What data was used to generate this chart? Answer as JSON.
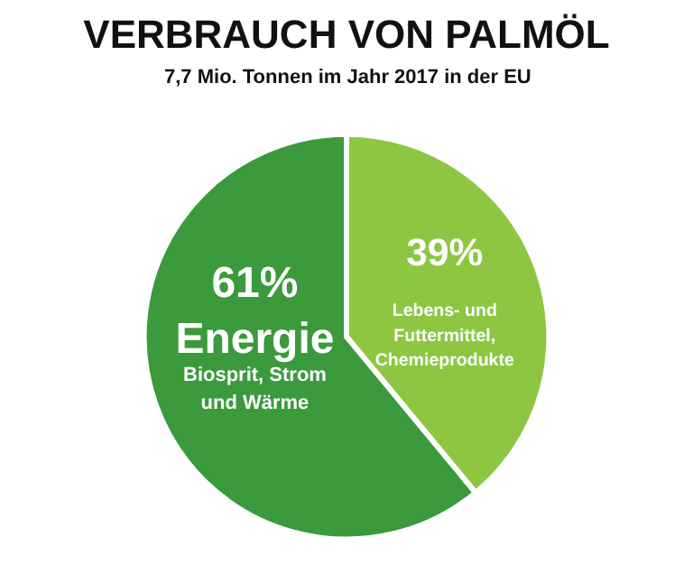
{
  "chart_data": {
    "type": "pie",
    "title": "VERBRAUCH VON PALMÖL",
    "subtitle": "7,7 Mio. Tonnen im Jahr 2017 in der EU",
    "categories": [
      "Lebens- und Futtermittel, Chemieprodukte",
      "Energie"
    ],
    "values": [
      39,
      61
    ],
    "value_labels": [
      "39%",
      "61%"
    ],
    "colors": [
      "#8dc641",
      "#3a9a3c"
    ],
    "annotations": [
      {
        "text": "Biosprit, Strom und Wärme",
        "x": "Energie"
      }
    ],
    "legend": false
  }
}
